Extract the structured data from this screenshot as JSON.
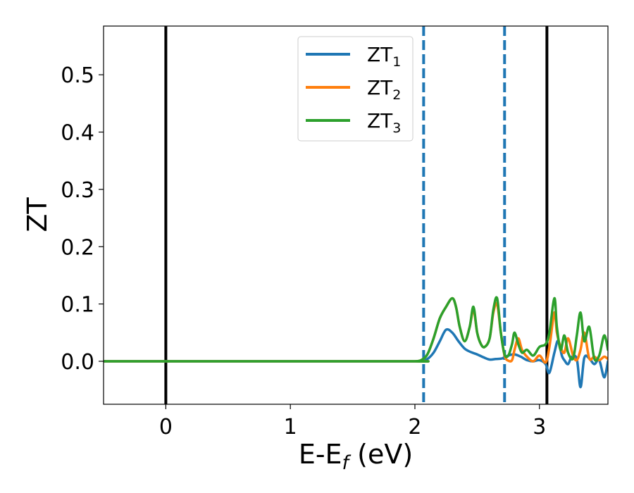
{
  "chart_data": {
    "type": "line",
    "xlabel": "E-E",
    "xlabel_sub": "f",
    "xlabel_unit": " (eV)",
    "ylabel": "ZT",
    "xlim": [
      -0.5,
      3.55
    ],
    "ylim": [
      -0.075,
      0.585
    ],
    "xticks": [
      0,
      1,
      2,
      3
    ],
    "xtick_labels": [
      "0",
      "1",
      "2",
      "3"
    ],
    "yticks": [
      0.0,
      0.1,
      0.2,
      0.3,
      0.4,
      0.5
    ],
    "ytick_labels": [
      "0.0",
      "0.1",
      "0.2",
      "0.3",
      "0.4",
      "0.5"
    ],
    "grid": false,
    "legend_position": "top-center",
    "vlines": [
      {
        "x": 0.0,
        "style": "solid",
        "color": "#000000"
      },
      {
        "x": 3.06,
        "style": "solid",
        "color": "#000000"
      },
      {
        "x": 2.07,
        "style": "dashed",
        "color": "#1f77b4"
      },
      {
        "x": 2.72,
        "style": "dashed",
        "color": "#1f77b4"
      }
    ],
    "series": [
      {
        "name": "ZT",
        "sub": "1",
        "color": "#1f77b4",
        "x": [
          -0.5,
          1.9,
          2.0,
          2.05,
          2.1,
          2.15,
          2.2,
          2.25,
          2.3,
          2.35,
          2.4,
          2.45,
          2.5,
          2.55,
          2.6,
          2.65,
          2.7,
          2.75,
          2.8,
          2.85,
          2.9,
          2.95,
          3.0,
          3.05,
          3.08,
          3.12,
          3.15,
          3.18,
          3.2,
          3.23,
          3.26,
          3.3,
          3.33,
          3.36,
          3.4,
          3.44,
          3.48,
          3.52,
          3.55
        ],
        "y": [
          0.0,
          0.0,
          0.0,
          0.001,
          0.004,
          0.015,
          0.035,
          0.055,
          0.05,
          0.035,
          0.022,
          0.016,
          0.012,
          0.007,
          0.003,
          0.004,
          0.005,
          0.01,
          0.012,
          0.008,
          0.002,
          0.0,
          0.002,
          -0.005,
          -0.02,
          0.015,
          0.036,
          0.01,
          0.002,
          -0.005,
          0.008,
          0.004,
          -0.045,
          0.006,
          0.005,
          -0.005,
          0.002,
          -0.028,
          0.0
        ]
      },
      {
        "name": "ZT",
        "sub": "2",
        "color": "#ff7f0e",
        "x": [
          -0.5,
          1.9,
          2.0,
          2.05,
          2.1,
          2.15,
          2.2,
          2.25,
          2.3,
          2.33,
          2.36,
          2.4,
          2.44,
          2.47,
          2.5,
          2.53,
          2.56,
          2.6,
          2.63,
          2.66,
          2.69,
          2.72,
          2.75,
          2.78,
          2.8,
          2.83,
          2.86,
          2.9,
          2.95,
          3.0,
          3.05,
          3.08,
          3.12,
          3.14,
          3.17,
          3.2,
          3.23,
          3.27,
          3.3,
          3.33,
          3.36,
          3.4,
          3.44,
          3.48,
          3.52,
          3.55
        ],
        "y": [
          0.0,
          0.0,
          0.0,
          0.002,
          0.012,
          0.04,
          0.075,
          0.095,
          0.11,
          0.095,
          0.06,
          0.035,
          0.06,
          0.09,
          0.05,
          0.03,
          0.025,
          0.04,
          0.085,
          0.1,
          0.05,
          0.01,
          0.001,
          0.002,
          0.02,
          0.04,
          0.02,
          0.008,
          0.0,
          0.01,
          -0.002,
          0.025,
          0.085,
          0.05,
          0.025,
          0.015,
          0.04,
          0.01,
          0.002,
          0.02,
          0.05,
          0.005,
          0.008,
          0.002,
          0.008,
          0.004
        ]
      },
      {
        "name": "ZT",
        "sub": "3",
        "color": "#2ca02c",
        "x": [
          -0.5,
          1.9,
          2.0,
          2.05,
          2.1,
          2.15,
          2.2,
          2.25,
          2.3,
          2.33,
          2.36,
          2.4,
          2.44,
          2.47,
          2.5,
          2.53,
          2.56,
          2.6,
          2.63,
          2.66,
          2.69,
          2.72,
          2.75,
          2.78,
          2.8,
          2.83,
          2.86,
          2.9,
          2.95,
          3.0,
          3.05,
          3.08,
          3.12,
          3.14,
          3.17,
          3.2,
          3.23,
          3.27,
          3.3,
          3.33,
          3.36,
          3.4,
          3.44,
          3.48,
          3.52,
          3.55
        ],
        "y": [
          0.0,
          0.0,
          0.0,
          0.002,
          0.012,
          0.04,
          0.075,
          0.095,
          0.11,
          0.095,
          0.06,
          0.035,
          0.06,
          0.095,
          0.05,
          0.03,
          0.025,
          0.04,
          0.09,
          0.11,
          0.05,
          0.012,
          0.01,
          0.03,
          0.05,
          0.03,
          0.015,
          0.02,
          0.01,
          0.025,
          0.03,
          0.05,
          0.11,
          0.06,
          0.02,
          0.045,
          0.015,
          0.005,
          0.045,
          0.085,
          0.035,
          0.06,
          0.005,
          0.01,
          0.045,
          0.02
        ]
      }
    ]
  }
}
